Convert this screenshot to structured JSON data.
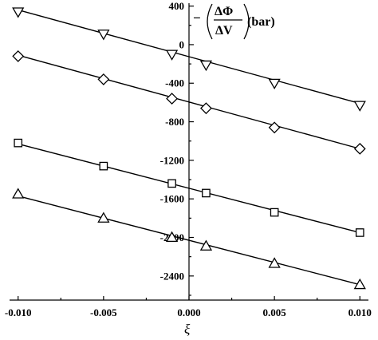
{
  "chart_data": {
    "type": "scatter",
    "title": "",
    "xlabel": "ξ",
    "ylabel": {
      "prefix": "−",
      "numerator": "ΔΦ",
      "denominator": "ΔV",
      "unit": "(bar)"
    },
    "xlim": [
      -0.0105,
      0.0105
    ],
    "ylim": [
      -2650,
      430
    ],
    "x_ticks": [
      {
        "value": -0.01,
        "label": "-0.010"
      },
      {
        "value": -0.005,
        "label": "-0.005"
      },
      {
        "value": 0.0,
        "label": "0.000"
      },
      {
        "value": 0.005,
        "label": "0.005"
      },
      {
        "value": 0.01,
        "label": "0.010"
      }
    ],
    "y_ticks": [
      {
        "value": 400,
        "label": "400"
      },
      {
        "value": 0,
        "label": "0"
      },
      {
        "value": -400,
        "label": "-400"
      },
      {
        "value": -800,
        "label": "-800"
      },
      {
        "value": -1200,
        "label": "-1200"
      },
      {
        "value": -1600,
        "label": "-1600"
      },
      {
        "value": -2000,
        "label": "-2000"
      },
      {
        "value": -2400,
        "label": "-2400"
      }
    ],
    "grid": false,
    "legend": "none",
    "series": [
      {
        "marker": "triangle-down",
        "x": [
          -0.01,
          -0.005,
          -0.001,
          0.001,
          0.005,
          0.01
        ],
        "y": [
          340,
          110,
          -100,
          -210,
          -400,
          -630
        ],
        "fit": [
          [
            -0.01,
            360
          ],
          [
            0.01,
            -610
          ]
        ]
      },
      {
        "marker": "diamond",
        "x": [
          -0.01,
          -0.005,
          -0.001,
          0.001,
          0.005,
          0.01
        ],
        "y": [
          -120,
          -360,
          -560,
          -660,
          -860,
          -1080
        ],
        "fit": [
          [
            -0.01,
            -110
          ],
          [
            0.01,
            -1080
          ]
        ]
      },
      {
        "marker": "square",
        "x": [
          -0.01,
          -0.005,
          -0.001,
          0.001,
          0.005,
          0.01
        ],
        "y": [
          -1020,
          -1260,
          -1440,
          -1540,
          -1740,
          -1950
        ],
        "fit": [
          [
            -0.01,
            -1030
          ],
          [
            0.01,
            -1950
          ]
        ]
      },
      {
        "marker": "triangle-up",
        "x": [
          -0.01,
          -0.005,
          -0.001,
          0.001,
          0.005,
          0.01
        ],
        "y": [
          -1550,
          -1800,
          -2000,
          -2090,
          -2270,
          -2490
        ],
        "fit": [
          [
            -0.01,
            -1570
          ],
          [
            0.01,
            -2490
          ]
        ]
      }
    ]
  }
}
